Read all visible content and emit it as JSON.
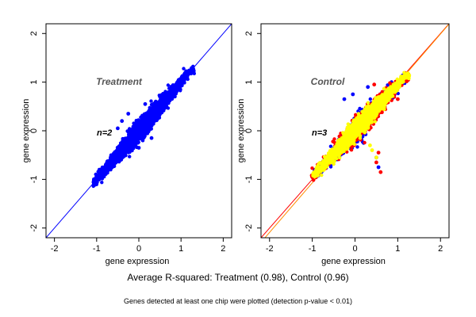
{
  "caption": {
    "main": "Average R-squared: Treatment (0.98), Control (0.96)",
    "footnote": "Genes detected at least one chip were plotted (detection p-value < 0.01)"
  },
  "chart_data": [
    {
      "type": "scatter",
      "title": "Treatment",
      "annotation": "n=2",
      "xlabel": "gene expression",
      "ylabel": "gene expression",
      "xlim": [
        -2.2,
        2.2
      ],
      "ylim": [
        -2.2,
        2.2
      ],
      "xticks": [
        -2,
        -1,
        0,
        1,
        2
      ],
      "yticks": [
        -2,
        -1,
        0,
        1,
        2
      ],
      "reference_lines": [
        {
          "slope": 1,
          "intercept": 0,
          "color": "#0000ff"
        }
      ],
      "grid": false,
      "series": [
        {
          "color": "#0000ff",
          "cloud": {
            "x_range": [
              -1.05,
              1.25
            ],
            "spread": 0.2,
            "slope": 1.0,
            "count": 2600
          },
          "outliers": [
            [
              -0.4,
              0.2
            ],
            [
              -0.25,
              0.35
            ],
            [
              0.15,
              0.55
            ],
            [
              -0.5,
              0.05
            ],
            [
              0.4,
              0.6
            ],
            [
              0.0,
              -0.35
            ],
            [
              0.3,
              -0.15
            ]
          ]
        }
      ]
    },
    {
      "type": "scatter",
      "title": "Control",
      "annotation": "n=3",
      "xlabel": "gene expression",
      "ylabel": "gene expression",
      "xlim": [
        -2.2,
        2.2
      ],
      "ylim": [
        -2.2,
        2.2
      ],
      "xticks": [
        -2,
        -1,
        0,
        1,
        2
      ],
      "yticks": [
        -2,
        -1,
        0,
        1,
        2
      ],
      "reference_lines": [
        {
          "slope": 1,
          "intercept": 0,
          "color": "#ff0000"
        },
        {
          "slope": 1.02,
          "intercept": -0.05,
          "color": "#ff8c00"
        }
      ],
      "grid": false,
      "series": [
        {
          "color": "#0000ff",
          "cloud": {
            "x_range": [
              -0.9,
              1.15
            ],
            "spread": 0.26,
            "slope": 0.95,
            "count": 900
          },
          "outliers": [
            [
              -0.25,
              0.65
            ],
            [
              0.5,
              -0.55
            ],
            [
              0.55,
              -0.75
            ],
            [
              0.3,
              0.9
            ],
            [
              0.2,
              -0.25
            ],
            [
              -0.05,
              0.75
            ]
          ]
        },
        {
          "color": "#ff0000",
          "cloud": {
            "x_range": [
              -0.95,
              1.2
            ],
            "spread": 0.24,
            "slope": 0.95,
            "count": 1200
          },
          "outliers": [
            [
              0.5,
              -0.65
            ],
            [
              0.6,
              -0.85
            ],
            [
              0.45,
              0.95
            ],
            [
              1.0,
              0.65
            ],
            [
              0.55,
              -0.45
            ],
            [
              0.9,
              0.75
            ]
          ]
        },
        {
          "color": "#ffff00",
          "cloud": {
            "x_range": [
              -0.95,
              1.2
            ],
            "spread": 0.18,
            "slope": 0.95,
            "count": 2400
          },
          "outliers": [
            [
              0.4,
              -0.4
            ],
            [
              0.5,
              -0.55
            ],
            [
              0.35,
              -0.3
            ]
          ]
        }
      ]
    }
  ]
}
